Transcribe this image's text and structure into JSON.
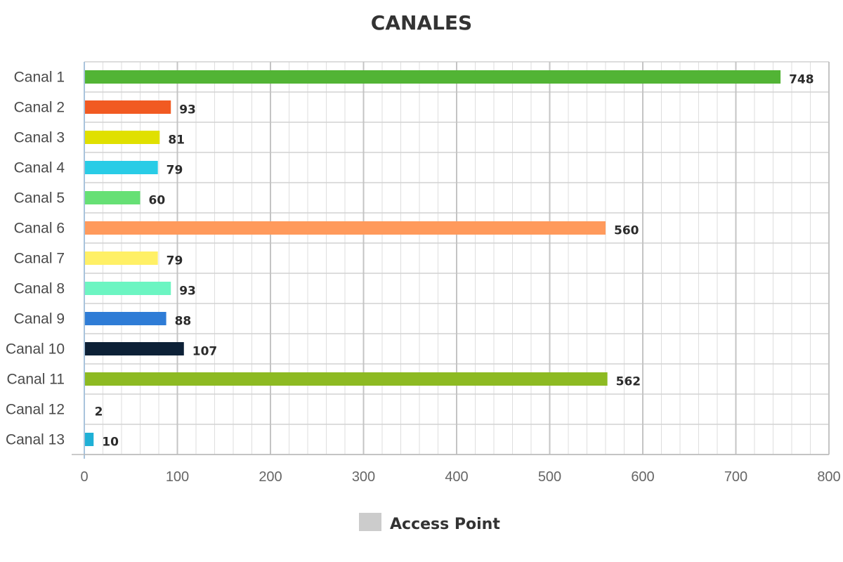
{
  "chart_data": {
    "type": "bar",
    "orientation": "horizontal",
    "title": "CANALES",
    "categories": [
      "Canal 1",
      "Canal 2",
      "Canal 3",
      "Canal 4",
      "Canal 5",
      "Canal 6",
      "Canal 7",
      "Canal 8",
      "Canal 9",
      "Canal 10",
      "Canal 11",
      "Canal 12",
      "Canal 13"
    ],
    "series": [
      {
        "name": "Access Point",
        "values": [
          748,
          93,
          81,
          79,
          60,
          560,
          79,
          93,
          88,
          107,
          562,
          2,
          10
        ],
        "data_labels": [
          "748",
          "93",
          "81",
          "79",
          "60",
          "560",
          "79",
          "93",
          "88",
          "107",
          "562",
          "2",
          "10"
        ]
      }
    ],
    "bar_colors": [
      "#52b435",
      "#f15a22",
      "#e0e000",
      "#29cce6",
      "#66e075",
      "#ff9a5c",
      "#fff066",
      "#6cf5c2",
      "#2e7cd6",
      "#0d2137",
      "#8dba22",
      "#ffffff",
      "#1fb0d6"
    ],
    "xlim": [
      0,
      800
    ],
    "xticks": [
      "0",
      "100",
      "200",
      "300",
      "400",
      "500",
      "600",
      "700",
      "800"
    ],
    "xtick_values": [
      0,
      100,
      200,
      300,
      400,
      500,
      600,
      700,
      800
    ],
    "minor_step": 20,
    "grid": true,
    "legend": {
      "placement": "bottom-center",
      "label": "Access Point",
      "swatch_color": "#cccccc"
    }
  }
}
